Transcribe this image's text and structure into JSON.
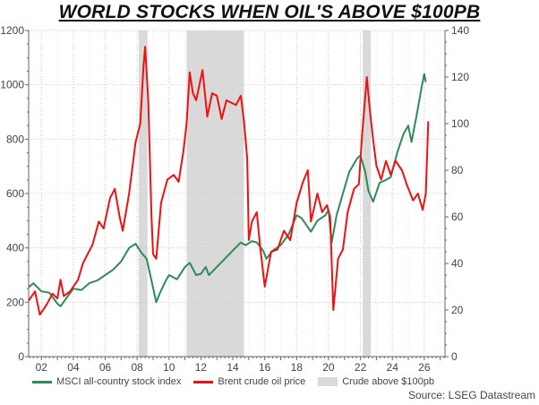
{
  "chart_data": {
    "type": "line",
    "title": "WORLD STOCKS WHEN OIL'S ABOVE $100PB",
    "source": "Source: LSEG Datastream",
    "x_ticks": [
      "02",
      "04",
      "06",
      "08",
      "10",
      "12",
      "14",
      "16",
      "18",
      "20",
      "22",
      "24",
      "26"
    ],
    "xlim": [
      2001.2,
      2027.3
    ],
    "y_left": {
      "lim": [
        0,
        1200
      ],
      "ticks": [
        "0",
        "200",
        "400",
        "600",
        "800",
        "1000",
        "1200"
      ]
    },
    "y_right": {
      "lim": [
        0,
        140
      ],
      "ticks": [
        "0",
        "20",
        "40",
        "60",
        "80",
        "100",
        "120",
        "140"
      ]
    },
    "grid": true,
    "legend_position": "bottom",
    "shaded_periods": {
      "name": "Crude above $100pb",
      "color": "#d9d9d9",
      "ranges": [
        [
          2008.1,
          2008.65
        ],
        [
          2011.1,
          2014.7
        ],
        [
          2022.15,
          2022.65
        ]
      ]
    },
    "series": [
      {
        "name": "MSCI all-country stock index",
        "axis": "left",
        "color": "#2e8b57",
        "x": [
          2001.2,
          2001.5,
          2002,
          2002.5,
          2003,
          2003.2,
          2003.5,
          2004,
          2004.5,
          2005,
          2005.5,
          2006,
          2006.5,
          2007,
          2007.5,
          2007.9,
          2008.3,
          2008.6,
          2008.9,
          2009.2,
          2009.4,
          2009.8,
          2010,
          2010.5,
          2011,
          2011.3,
          2011.7,
          2012,
          2012.3,
          2012.5,
          2013,
          2013.5,
          2014,
          2014.5,
          2014.8,
          2015.2,
          2015.5,
          2015.9,
          2016.1,
          2016.5,
          2017,
          2017.5,
          2018,
          2018.3,
          2018.9,
          2019.3,
          2019.8,
          2020,
          2020.2,
          2020.5,
          2020.9,
          2021.3,
          2021.8,
          2022,
          2022.3,
          2022.5,
          2022.8,
          2023.2,
          2023.6,
          2023.9,
          2024.3,
          2024.7,
          2025,
          2025.2,
          2025.5,
          2025.8,
          2026.0,
          2026.1
        ],
        "y": [
          255,
          270,
          240,
          235,
          195,
          185,
          210,
          250,
          245,
          270,
          280,
          300,
          320,
          350,
          400,
          415,
          380,
          360,
          280,
          200,
          230,
          280,
          300,
          285,
          330,
          345,
          300,
          305,
          330,
          300,
          330,
          360,
          390,
          420,
          410,
          425,
          420,
          390,
          360,
          390,
          410,
          450,
          520,
          510,
          460,
          500,
          520,
          540,
          420,
          520,
          600,
          680,
          730,
          740,
          680,
          610,
          570,
          640,
          650,
          660,
          750,
          820,
          850,
          790,
          880,
          980,
          1040,
          1010
        ]
      },
      {
        "name": "Brent crude oil price",
        "axis": "right",
        "color": "#ee1111",
        "x": [
          2001.2,
          2001.6,
          2001.9,
          2002.3,
          2002.7,
          2003,
          2003.2,
          2003.4,
          2003.8,
          2004.3,
          2004.6,
          2004.9,
          2005.2,
          2005.6,
          2005.9,
          2006.3,
          2006.6,
          2006.9,
          2007.1,
          2007.5,
          2007.9,
          2008.2,
          2008.4,
          2008.5,
          2008.7,
          2008.9,
          2009.0,
          2009.2,
          2009.5,
          2009.9,
          2010.3,
          2010.6,
          2010.9,
          2011.1,
          2011.3,
          2011.5,
          2011.7,
          2012.1,
          2012.4,
          2012.7,
          2013.0,
          2013.3,
          2013.6,
          2013.9,
          2014.2,
          2014.5,
          2014.7,
          2014.9,
          2015.0,
          2015.2,
          2015.5,
          2015.7,
          2016.0,
          2016.4,
          2016.8,
          2017.2,
          2017.6,
          2018.0,
          2018.4,
          2018.7,
          2018.9,
          2019.3,
          2019.6,
          2019.9,
          2020.1,
          2020.3,
          2020.6,
          2020.9,
          2021.2,
          2021.6,
          2021.9,
          2022.1,
          2022.4,
          2022.6,
          2022.8,
          2023.0,
          2023.3,
          2023.6,
          2023.9,
          2024.2,
          2024.6,
          2024.9,
          2025.3,
          2025.6,
          2025.9,
          2026.1,
          2026.25
        ],
        "y": [
          24,
          28,
          18,
          22,
          27,
          25,
          33,
          26,
          28,
          33,
          40,
          44,
          48,
          58,
          55,
          68,
          72,
          60,
          54,
          70,
          92,
          100,
          125,
          133,
          110,
          60,
          44,
          42,
          66,
          76,
          78,
          75,
          88,
          100,
          122,
          113,
          110,
          123,
          103,
          113,
          112,
          102,
          110,
          109,
          108,
          112,
          101,
          85,
          50,
          58,
          62,
          48,
          30,
          45,
          46,
          54,
          50,
          66,
          75,
          80,
          58,
          70,
          62,
          65,
          60,
          20,
          42,
          46,
          62,
          72,
          74,
          95,
          120,
          105,
          93,
          82,
          76,
          84,
          78,
          84,
          80,
          74,
          67,
          70,
          63,
          70,
          101
        ]
      }
    ]
  }
}
